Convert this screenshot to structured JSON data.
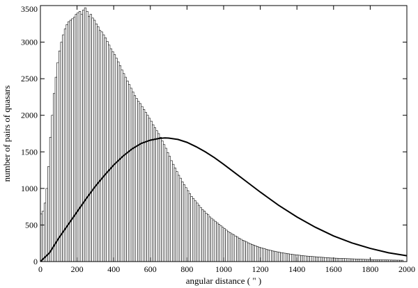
{
  "chart_data": {
    "type": "bar",
    "xlabel": "angular distance ( \" )",
    "ylabel": "number of pairs of quasars",
    "xlim": [
      0,
      2000
    ],
    "ylim": [
      0,
      3500
    ],
    "grid": false,
    "x_ticks": [
      0,
      200,
      400,
      600,
      800,
      1000,
      1200,
      1400,
      1600,
      1800,
      2000
    ],
    "y_ticks": [
      0,
      500,
      1000,
      1500,
      2000,
      2500,
      3000,
      3500
    ],
    "x_tick_labels": [
      "0",
      "200",
      "400",
      "600",
      "800",
      "1000",
      "1200",
      "1400",
      "1600",
      "1800",
      "2000"
    ],
    "y_tick_labels": [
      "0",
      "500",
      "1000",
      "1500",
      "2000",
      "2500",
      "3000",
      "3500"
    ],
    "histogram": {
      "bin_width": 10,
      "x_start": 0,
      "values": [
        650,
        690,
        800,
        1000,
        1300,
        1700,
        2000,
        2300,
        2520,
        2720,
        2880,
        3000,
        3100,
        3180,
        3240,
        3280,
        3300,
        3320,
        3340,
        3380,
        3400,
        3420,
        3380,
        3440,
        3470,
        3420,
        3350,
        3380,
        3330,
        3300,
        3250,
        3210,
        3160,
        3140,
        3100,
        3060,
        3010,
        2960,
        2910,
        2870,
        2830,
        2780,
        2730,
        2680,
        2620,
        2570,
        2520,
        2470,
        2420,
        2370,
        2320,
        2270,
        2230,
        2190,
        2160,
        2120,
        2080,
        2040,
        2000,
        1960,
        1920,
        1870,
        1830,
        1790,
        1750,
        1700,
        1650,
        1600,
        1550,
        1490,
        1440,
        1380,
        1330,
        1280,
        1230,
        1180,
        1140,
        1090,
        1050,
        1010,
        970,
        930,
        890,
        860,
        830,
        800,
        770,
        740,
        710,
        690,
        660,
        640,
        610,
        590,
        570,
        550,
        530,
        510,
        490,
        470,
        450,
        430,
        410,
        395,
        380,
        365,
        350,
        335,
        320,
        305,
        292,
        280,
        268,
        256,
        245,
        235,
        225,
        215,
        206,
        197,
        189,
        181,
        174,
        167,
        160,
        154,
        148,
        142,
        137,
        132,
        127,
        122,
        118,
        114,
        110,
        106,
        102,
        98,
        95,
        92,
        89,
        86,
        83,
        80,
        77,
        75,
        73,
        71,
        69,
        67,
        65,
        63,
        61,
        59,
        57,
        55,
        53,
        51,
        49,
        48,
        47,
        46,
        45,
        44,
        43,
        42,
        41,
        40,
        39,
        38,
        37,
        36,
        35,
        34,
        33,
        32,
        31,
        30,
        29,
        28,
        27,
        26,
        25,
        25,
        24,
        24,
        23,
        23,
        22,
        22,
        21,
        21,
        20,
        20,
        19,
        19,
        18,
        18
      ]
    },
    "curve": {
      "x": [
        0,
        50,
        100,
        150,
        200,
        250,
        300,
        350,
        400,
        450,
        500,
        550,
        600,
        650,
        680,
        700,
        750,
        800,
        850,
        900,
        950,
        1000,
        1100,
        1200,
        1300,
        1400,
        1500,
        1600,
        1700,
        1800,
        1900,
        2000
      ],
      "y": [
        0,
        120,
        320,
        500,
        680,
        860,
        1030,
        1180,
        1320,
        1440,
        1540,
        1615,
        1660,
        1685,
        1690,
        1688,
        1670,
        1630,
        1570,
        1500,
        1420,
        1330,
        1140,
        950,
        770,
        610,
        470,
        350,
        255,
        180,
        120,
        80
      ]
    }
  }
}
